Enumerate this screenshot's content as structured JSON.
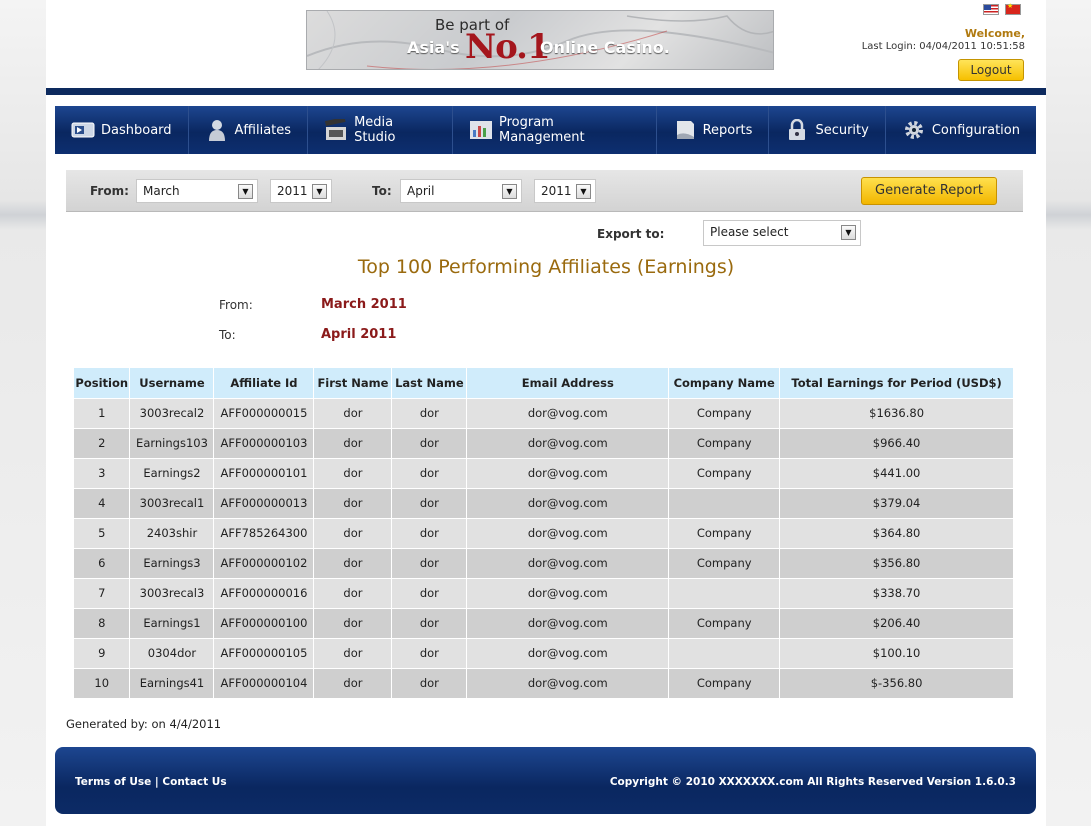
{
  "banner": {
    "line1": "Be part of",
    "line2": "Asia's",
    "line3": "No.1",
    "line4": "Online Casino."
  },
  "header": {
    "welcome": "Welcome,",
    "last_login": "Last Login: 04/04/2011 10:51:58",
    "logout_label": "Logout",
    "flags": [
      "us-flag-icon",
      "cn-flag-icon"
    ]
  },
  "nav": {
    "items": [
      {
        "label": "Dashboard",
        "icon": "dashboard-icon"
      },
      {
        "label": "Affiliates",
        "icon": "person-icon"
      },
      {
        "label": "Media Studio",
        "icon": "film-icon"
      },
      {
        "label": "Program Management",
        "icon": "chart-icon"
      },
      {
        "label": "Reports",
        "icon": "document-icon"
      },
      {
        "label": "Security",
        "icon": "lock-icon"
      },
      {
        "label": "Configuration",
        "icon": "gear-icon"
      }
    ]
  },
  "filter": {
    "from_label": "From:",
    "from_month": "March",
    "from_year": "2011",
    "to_label": "To:",
    "to_month": "April",
    "to_year": "2011",
    "generate_label": "Generate Report"
  },
  "export": {
    "label": "Export to:",
    "value": "Please select"
  },
  "report": {
    "title": "Top 100 Performing Affiliates (Earnings)",
    "from_label": "From:",
    "from_value": "March 2011",
    "to_label": "To:",
    "to_value": "April 2011"
  },
  "table": {
    "headers": [
      "Position",
      "Username",
      "Affiliate Id",
      "First Name",
      "Last Name",
      "Email Address",
      "Company Name",
      "Total Earnings for Period (USD$)"
    ],
    "rows": [
      [
        "1",
        "3003recal2",
        "AFF000000015",
        "dor",
        "dor",
        "dor@vog.com",
        "Company",
        "$1636.80"
      ],
      [
        "2",
        "Earnings103",
        "AFF000000103",
        "dor",
        "dor",
        "dor@vog.com",
        "Company",
        "$966.40"
      ],
      [
        "3",
        "Earnings2",
        "AFF000000101",
        "dor",
        "dor",
        "dor@vog.com",
        "Company",
        "$441.00"
      ],
      [
        "4",
        "3003recal1",
        "AFF000000013",
        "dor",
        "dor",
        "dor@vog.com",
        "",
        "$379.04"
      ],
      [
        "5",
        "2403shir",
        "AFF785264300",
        "dor",
        "dor",
        "dor@vog.com",
        "Company",
        "$364.80"
      ],
      [
        "6",
        "Earnings3",
        "AFF000000102",
        "dor",
        "dor",
        "dor@vog.com",
        "Company",
        "$356.80"
      ],
      [
        "7",
        "3003recal3",
        "AFF000000016",
        "dor",
        "dor",
        "dor@vog.com",
        "",
        "$338.70"
      ],
      [
        "8",
        "Earnings1",
        "AFF000000100",
        "dor",
        "dor",
        "dor@vog.com",
        "Company",
        "$206.40"
      ],
      [
        "9",
        "0304dor",
        "AFF000000105",
        "dor",
        "dor",
        "dor@vog.com",
        "",
        "$100.10"
      ],
      [
        "10",
        "Earnings41",
        "AFF000000104",
        "dor",
        "dor",
        "dor@vog.com",
        "Company",
        "$-356.80"
      ]
    ]
  },
  "generated": "Generated by: on 4/4/2011",
  "footer": {
    "terms": "Terms of Use",
    "separator": "|",
    "contact": "Contact Us",
    "copyright": "Copyright © 2010 XXXXXXX.com All Rights Reserved  Version 1.6.0.3"
  }
}
